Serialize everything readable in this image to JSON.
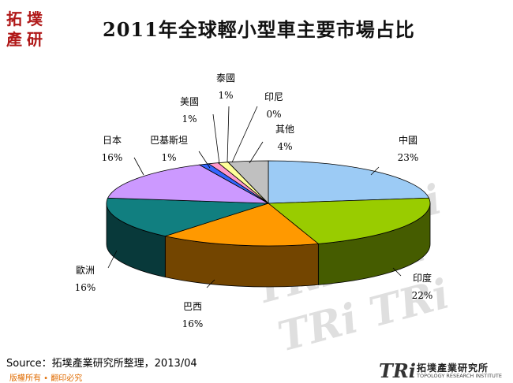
{
  "header": {
    "title": "2011年全球輕小型車主要市場占比"
  },
  "logo": {
    "chars": [
      "拓",
      "墣",
      "產",
      "研"
    ]
  },
  "chart_data": {
    "type": "pie",
    "title": "2011年全球輕小型車主要市場占比",
    "slices": [
      {
        "label": "中國",
        "value_label": "23%",
        "value": 23,
        "color": "#9ccbf5"
      },
      {
        "label": "印度",
        "value_label": "22%",
        "value": 22,
        "color": "#99cc00"
      },
      {
        "label": "巴西",
        "value_label": "16%",
        "value": 16,
        "color": "#ff9900"
      },
      {
        "label": "歐洲",
        "value_label": "16%",
        "value": 16,
        "color": "#117f80"
      },
      {
        "label": "日本",
        "value_label": "16%",
        "value": 16,
        "color": "#cc99ff"
      },
      {
        "label": "巴基斯坦",
        "value_label": "1%",
        "value": 1,
        "color": "#3366ff"
      },
      {
        "label": "美國",
        "value_label": "1%",
        "value": 1,
        "color": "#ff99cc"
      },
      {
        "label": "泰國",
        "value_label": "1%",
        "value": 1,
        "color": "#ffff99"
      },
      {
        "label": "印尼",
        "value_label": "0%",
        "value": 0,
        "color": "#9999ff"
      },
      {
        "label": "其他",
        "value_label": "4%",
        "value": 4,
        "color": "#c0c0c0"
      }
    ],
    "style": "3d-pie"
  },
  "footer": {
    "source": "Source：拓墣產業研究所整理，2013/04",
    "rights": "版權所有 • 翻印必究",
    "brand_mark": "TRi",
    "brand_name": "拓墣產業研究所",
    "brand_sub": "TOPOLOGY RESEARCH INSTITUTE"
  }
}
